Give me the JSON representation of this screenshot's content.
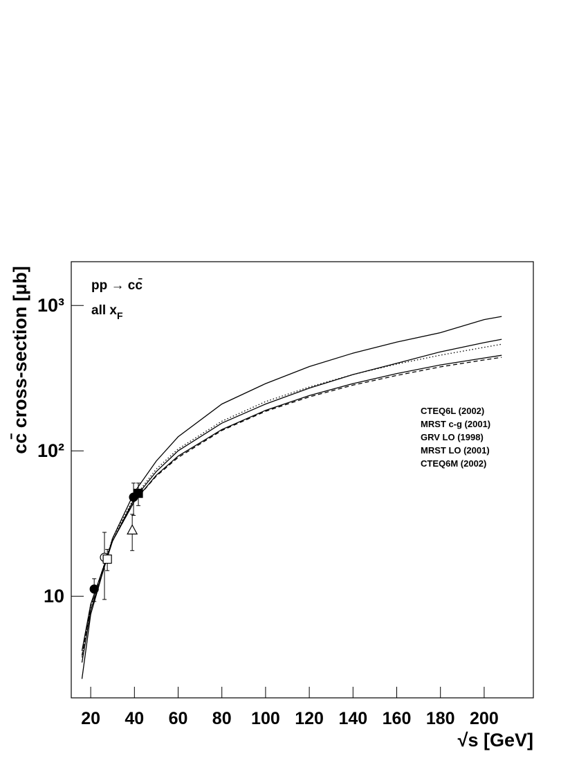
{
  "chart_data": {
    "type": "line",
    "y_label": "cc̄ cross-section [μb]",
    "x_label": "√s [GeV]",
    "annotations": [
      {
        "text": "pp → cc̄"
      },
      {
        "text": "all x",
        "sub": "F"
      }
    ],
    "x": [
      16,
      20,
      30,
      40,
      50,
      60,
      80,
      100,
      120,
      140,
      160,
      180,
      200,
      208
    ],
    "series": [
      {
        "name": "CTEQ6L (2002)",
        "color": "#000000",
        "dash": "solid",
        "values": [
          2.7,
          7.5,
          25,
          52,
          85,
          125,
          210,
          290,
          380,
          470,
          560,
          650,
          800,
          840
        ]
      },
      {
        "name": "MRST c-g (2001)",
        "color": "#000000",
        "dash": "solid",
        "values": [
          3.5,
          8,
          24,
          47,
          72,
          100,
          155,
          210,
          270,
          335,
          400,
          480,
          555,
          585
        ]
      },
      {
        "name": "GRV LO (1998)",
        "color": "#000000",
        "dash": "dotted",
        "values": [
          3.8,
          8.5,
          25,
          48,
          75,
          103,
          160,
          218,
          275,
          335,
          395,
          455,
          515,
          541
        ]
      },
      {
        "name": "MRST LO (2001)",
        "color": "#000000",
        "dash": "solid",
        "values": [
          4.2,
          8.8,
          24,
          45,
          68,
          92,
          140,
          190,
          240,
          290,
          340,
          390,
          435,
          454
        ]
      },
      {
        "name": "CTEQ6M (2002)",
        "color": "#000000",
        "dash": "dashed",
        "values": [
          3.9,
          8.6,
          24,
          45,
          67,
          90,
          138,
          187,
          235,
          283,
          330,
          378,
          422,
          440
        ]
      }
    ],
    "points": [
      {
        "marker": "filled-circle",
        "x": 21.6,
        "y": 11.2,
        "err": 2
      },
      {
        "marker": "open-circle",
        "x": 26.3,
        "y": 18.5,
        "err": 9
      },
      {
        "marker": "open-square",
        "x": 27.6,
        "y": 18,
        "err": 3
      },
      {
        "marker": "open-triangle",
        "x": 39,
        "y": 28.6,
        "err": 8
      },
      {
        "marker": "filled-circle",
        "x": 39.6,
        "y": 48,
        "err": 12
      },
      {
        "marker": "filled-square",
        "x": 41.8,
        "y": 51,
        "err": 9
      }
    ],
    "xlim": [
      11.1,
      222.5
    ],
    "xticks": [
      20,
      40,
      60,
      80,
      100,
      120,
      140,
      160,
      180,
      200
    ],
    "ylim": [
      2,
      2000
    ],
    "ylog": true,
    "yticks": [
      10,
      {
        "value": 100,
        "label": "10²"
      },
      {
        "value": 1000,
        "label": "10³"
      }
    ],
    "grid": false
  }
}
